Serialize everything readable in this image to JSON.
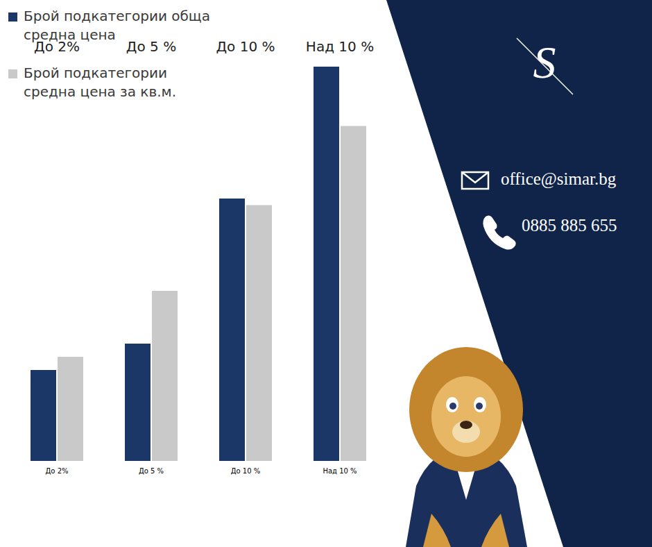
{
  "chart_data": {
    "type": "bar",
    "categories": [
      "До 2%",
      "До 5 %",
      "До 10 %",
      "Над 10 %"
    ],
    "series": [
      {
        "name": "Брой подкатегории обща средна цена",
        "color": "#1b3768",
        "values": [
          7,
          9,
          20,
          30
        ]
      },
      {
        "name": "Брой подкатегории средна цена за кв.м.",
        "color": "#c9c9c9",
        "values": [
          8,
          13,
          19.5,
          25.5
        ]
      }
    ],
    "ylim": [
      0,
      30
    ],
    "tick_labels": "x",
    "legend": "top-left"
  },
  "logo": "S",
  "contact": {
    "email": "office@simar.bg",
    "phone": "0885 885 655"
  }
}
